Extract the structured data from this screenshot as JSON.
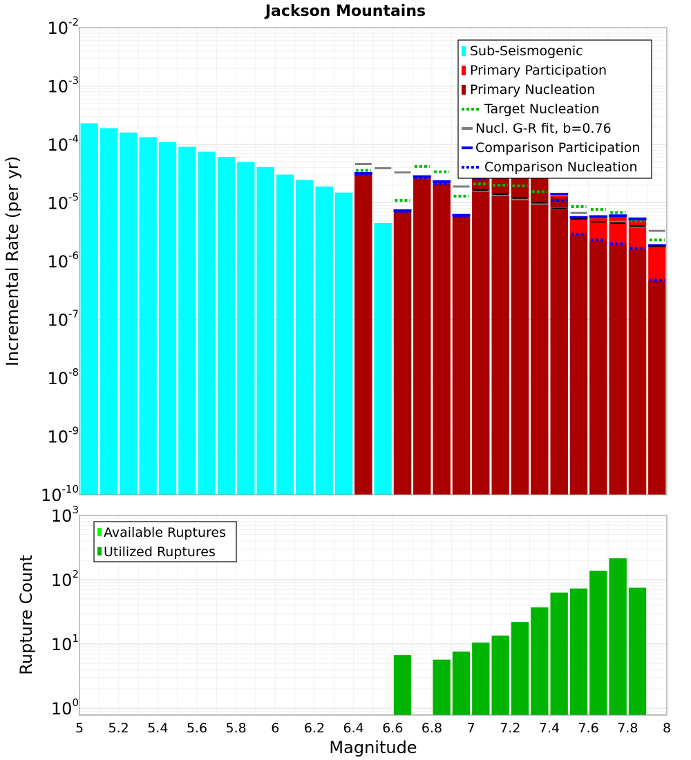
{
  "chart_data": [
    {
      "type": "bar",
      "title": "Jackson Mountains",
      "xlabel": "",
      "ylabel": "Incremental Rate (per yr)",
      "yscale": "log",
      "xlim": [
        5,
        8
      ],
      "ylim": [
        1e-10,
        0.01
      ],
      "ytick_bases": [
        "10",
        "10",
        "10",
        "10",
        "10",
        "10",
        "10",
        "10",
        "10"
      ],
      "ytick_exponents": [
        "-10",
        "-9",
        "-8",
        "-7",
        "-6",
        "-5",
        "-4",
        "-3",
        "-2"
      ],
      "ytick_values": [
        1e-10,
        1e-09,
        1e-08,
        1e-07,
        1e-06,
        1e-05,
        0.0001,
        0.001,
        0.01
      ],
      "bin_width": 0.1,
      "legend_position": "top-right",
      "legend": [
        "Sub-Seismogenic",
        "Primary Participation",
        "Primary Nucleation",
        "Target Nucleation",
        "Nucl. G-R fit, b=0.76",
        "Comparison Participation",
        "Comparison Nucleation"
      ],
      "colors": {
        "sub_seismogenic": "#00ffff",
        "primary_participation": "#ff0000",
        "primary_nucleation": "#aa0000",
        "target_nucleation": "#00bb00",
        "gr_fit": "#808080",
        "comparison_participation": "#0000ff",
        "comparison_nucleation": "#0000ff"
      },
      "series": [
        {
          "name": "Sub-Seismogenic",
          "x": [
            5.05,
            5.15,
            5.25,
            5.35,
            5.45,
            5.55,
            5.65,
            5.75,
            5.85,
            5.95,
            6.05,
            6.15,
            6.25,
            6.35,
            6.55
          ],
          "values": [
            0.00023,
            0.00019,
            0.00016,
            0.000133,
            0.00011,
            9.1e-05,
            7.5e-05,
            6.1e-05,
            5e-05,
            4.1e-05,
            3.05e-05,
            2.45e-05,
            1.9e-05,
            1.5e-05,
            4.5e-06
          ]
        },
        {
          "name": "Primary Participation",
          "x": [
            6.45,
            6.65,
            6.75,
            6.85,
            6.95,
            7.05,
            7.15,
            7.25,
            7.35,
            7.45,
            7.55,
            7.65,
            7.75,
            7.85,
            7.95
          ],
          "values": [
            3.3e-05,
            7.2e-06,
            2.8e-05,
            2.2e-05,
            6e-06,
            2.9e-05,
            4.5e-05,
            5e-05,
            3.2e-05,
            1.3e-05,
            5.5e-06,
            5.7e-06,
            5.9e-06,
            5.2e-06,
            1.85e-06
          ]
        },
        {
          "name": "Primary Nucleation",
          "x": [
            6.45,
            6.65,
            6.75,
            6.85,
            6.95,
            7.05,
            7.15,
            7.25,
            7.35,
            7.45,
            7.55,
            7.65,
            7.75,
            7.85,
            7.95
          ],
          "values": [
            3.3e-05,
            7e-06,
            2.7e-05,
            2.1e-05,
            5.8e-06,
            2.6e-05,
            2.9e-05,
            2.7e-05,
            2.8e-05,
            1.25e-05,
            2.8e-06,
            2.2e-06,
            1.9e-06,
            1.6e-06,
            4.6e-07
          ]
        },
        {
          "name": "Target Nucleation",
          "x": [
            6.45,
            6.65,
            6.75,
            6.85,
            6.95,
            7.05,
            7.15,
            7.25,
            7.35,
            7.45,
            7.55,
            7.65,
            7.75,
            7.85,
            7.95
          ],
          "values": [
            3.6e-05,
            1.1e-05,
            4.2e-05,
            3.4e-05,
            1.3e-05,
            2.1e-05,
            2e-05,
            1.95e-05,
            1.55e-05,
            1.1e-05,
            8.6e-06,
            7.7e-06,
            6.8e-06,
            4.9e-06,
            2.3e-06
          ]
        },
        {
          "name": "Nucl. G-R fit, b=0.76",
          "x": [
            6.45,
            6.55,
            6.65,
            6.75,
            6.85,
            6.95,
            7.05,
            7.15,
            7.25,
            7.35,
            7.45,
            7.55,
            7.65,
            7.75,
            7.85,
            7.95
          ],
          "values": [
            4.6e-05,
            3.9e-05,
            3.3e-05,
            2.7e-05,
            2.3e-05,
            1.9e-05,
            1.6e-05,
            1.35e-05,
            1.15e-05,
            9.6e-06,
            8e-06,
            6.7e-06,
            5.6e-06,
            4.7e-06,
            3.9e-06,
            3.3e-06
          ]
        },
        {
          "name": "Comparison Participation",
          "x": [
            6.45,
            6.65,
            6.75,
            6.85,
            6.95,
            7.05,
            7.15,
            7.25,
            7.35,
            7.45,
            7.55,
            7.65,
            7.75,
            7.85,
            7.95
          ],
          "values": [
            3.2e-05,
            7.3e-06,
            2.8e-05,
            2.3e-05,
            6.1e-06,
            2.9e-05,
            4.6e-05,
            5.2e-05,
            3.3e-05,
            1.4e-05,
            5.6e-06,
            5.8e-06,
            6e-06,
            5.3e-06,
            1.85e-06
          ]
        },
        {
          "name": "Comparison Nucleation",
          "x": [
            6.45,
            6.65,
            6.75,
            6.85,
            6.95,
            7.05,
            7.15,
            7.25,
            7.35,
            7.45,
            7.55,
            7.65,
            7.75,
            7.85,
            7.95
          ],
          "values": [
            3.1e-05,
            7.1e-06,
            2.7e-05,
            2.1e-05,
            5.9e-06,
            2.6e-05,
            2.9e-05,
            2.8e-05,
            2.9e-05,
            1.1e-05,
            2.9e-06,
            2.3e-06,
            2e-06,
            1.65e-06,
            4.7e-07
          ]
        },
        {
          "name": "Participation Black Marker",
          "x": [
            7.05,
            7.15,
            7.25,
            7.35,
            7.45,
            7.55,
            7.65,
            7.75,
            7.85,
            7.95
          ],
          "values": [
            1.65e-05,
            1.4e-05,
            1.2e-05,
            1e-05,
            8e-06,
            5.3e-06,
            4.7e-06,
            4.5e-06,
            4e-06,
            1.8e-06
          ]
        }
      ]
    },
    {
      "type": "bar",
      "title": "",
      "xlabel": "Magnitude",
      "ylabel": "Rupture Count",
      "yscale": "log",
      "xlim": [
        5,
        8
      ],
      "ylim": [
        0.78,
        1000
      ],
      "ytick_bases": [
        "10",
        "10",
        "10",
        "10"
      ],
      "ytick_exponents": [
        "0",
        "1",
        "2",
        "3"
      ],
      "ytick_values": [
        1,
        10,
        100,
        1000
      ],
      "xtick_labels": [
        "5",
        "5.2",
        "5.4",
        "5.6",
        "5.8",
        "6",
        "6.2",
        "6.4",
        "6.6",
        "6.8",
        "7",
        "7.2",
        "7.4",
        "7.6",
        "7.8",
        "8"
      ],
      "xtick_values": [
        5,
        5.2,
        5.4,
        5.6,
        5.8,
        6,
        6.2,
        6.4,
        6.6,
        6.8,
        7,
        7.2,
        7.4,
        7.6,
        7.8,
        8
      ],
      "legend_position": "top-left",
      "legend": [
        "Available Ruptures",
        "Utilized Ruptures"
      ],
      "colors": {
        "available": "#00ff00",
        "utilized": "#00b400"
      },
      "series": [
        {
          "name": "Utilized Ruptures",
          "x": [
            6.65,
            6.85,
            6.95,
            7.05,
            7.15,
            7.25,
            7.35,
            7.45,
            7.55,
            7.65,
            7.75,
            7.85
          ],
          "values": [
            6.7,
            5.7,
            7.6,
            10.5,
            13.5,
            22,
            37,
            63,
            73,
            138,
            215,
            75
          ]
        }
      ]
    }
  ]
}
